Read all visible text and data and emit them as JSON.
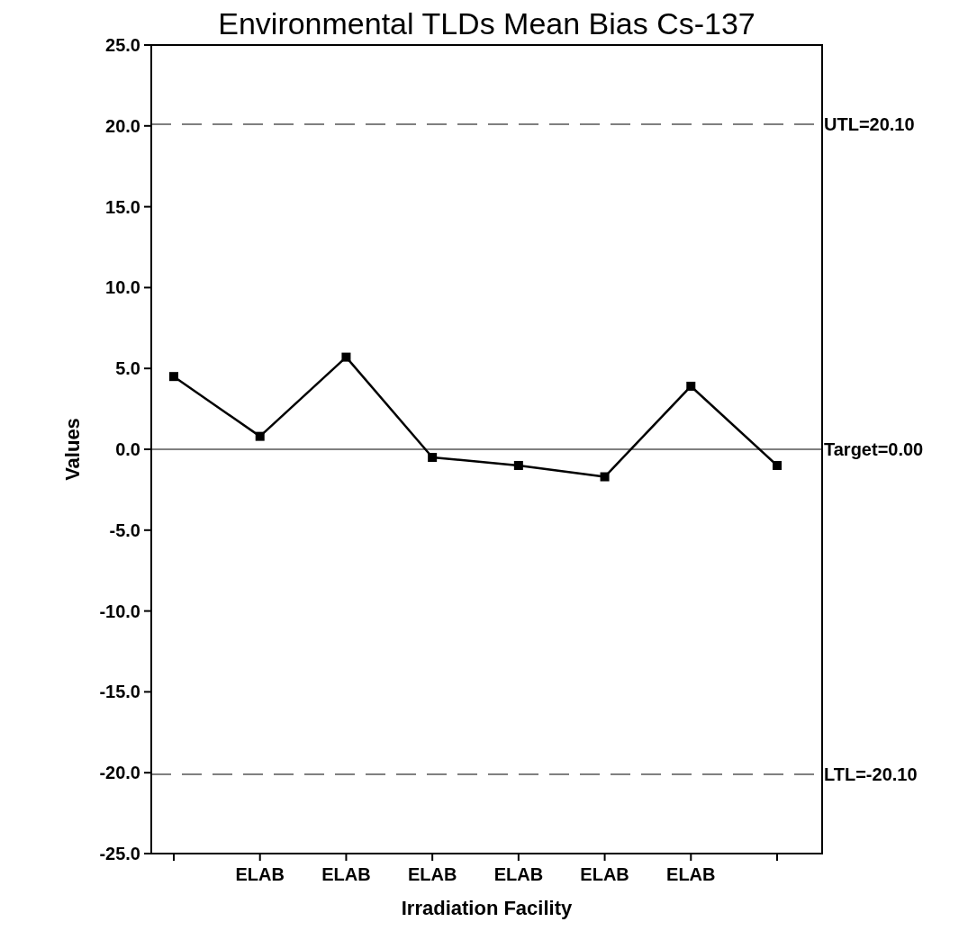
{
  "chart_data": {
    "type": "line",
    "title": "Environmental TLDs Mean Bias Cs-137",
    "xlabel": "Irradiation Facility",
    "ylabel": "Values",
    "categories": [
      null,
      "ELAB",
      "ELAB",
      "ELAB",
      "ELAB",
      "ELAB",
      "ELAB",
      null
    ],
    "series": [
      {
        "color": "#000000",
        "values": [
          4.5,
          0.8,
          5.7,
          -0.5,
          -1.0,
          -1.7,
          3.9,
          -1.0
        ]
      }
    ],
    "marker": "square",
    "line_style": "solid",
    "grid": false,
    "ylim": [
      -25,
      25
    ],
    "yticks": [
      {
        "value": -25,
        "label": "-25.0"
      },
      {
        "value": -20,
        "label": "-20.0"
      },
      {
        "value": -15,
        "label": "-15.0"
      },
      {
        "value": -10,
        "label": "-10.0"
      },
      {
        "value": -5,
        "label": "-5.0"
      },
      {
        "value": 0,
        "label": "0.0"
      },
      {
        "value": 5,
        "label": "5.0"
      },
      {
        "value": 10,
        "label": "10.0"
      },
      {
        "value": 15,
        "label": "15.0"
      },
      {
        "value": 20,
        "label": "20.0"
      },
      {
        "value": 25,
        "label": "25.0"
      }
    ],
    "ref_lines": [
      {
        "axis": "y",
        "value": 20.1,
        "label": "UTL=20.10",
        "line_style": "dashed"
      },
      {
        "axis": "y",
        "value": 0,
        "label": "Target=0.00",
        "line_style": "solid"
      },
      {
        "axis": "y",
        "value": -20.1,
        "label": "LTL=-20.10",
        "line_style": "dashed"
      }
    ]
  }
}
